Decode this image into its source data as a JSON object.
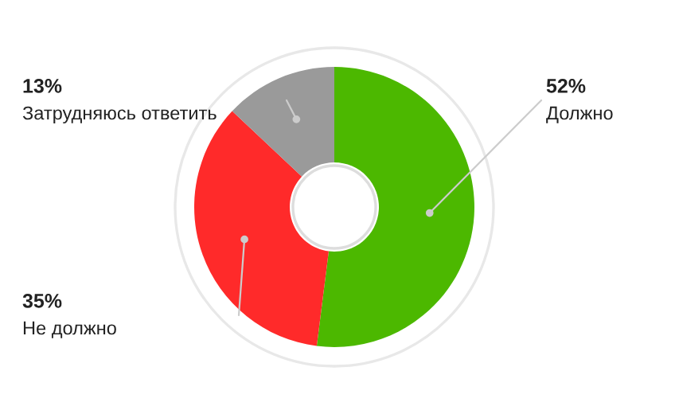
{
  "chart_data": {
    "type": "donut",
    "categories": [
      "Должно",
      "Не должно",
      "Затрудняюсь ответить"
    ],
    "values": [
      52,
      35,
      13
    ],
    "colors": [
      "#4cb800",
      "#ff2a2a",
      "#9a9a9a"
    ],
    "value_labels": [
      "52%",
      "35%",
      "13%"
    ]
  }
}
